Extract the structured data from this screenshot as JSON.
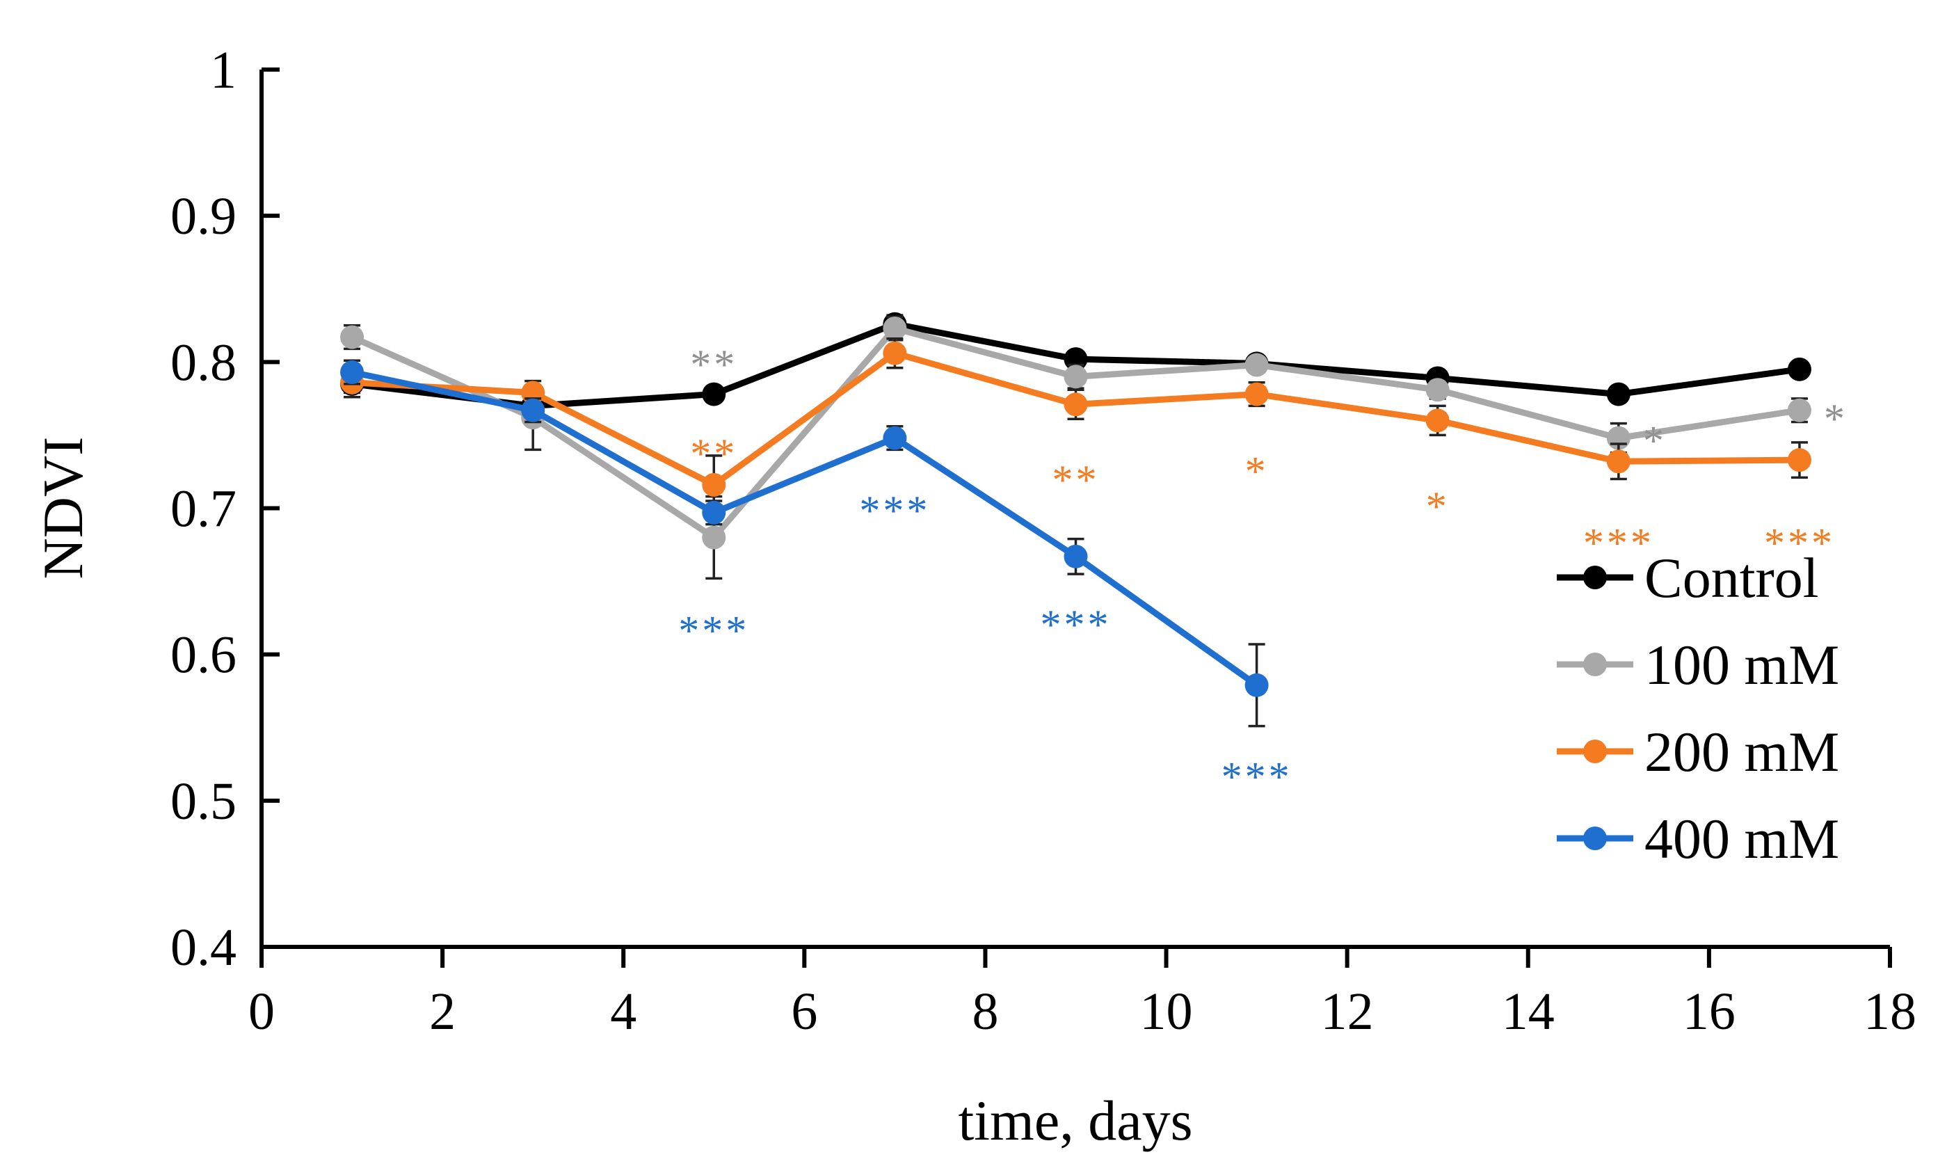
{
  "chart_data": {
    "type": "line",
    "title": "",
    "xlabel": "time, days",
    "ylabel": "NDVI",
    "xlim": [
      0,
      18
    ],
    "ylim": [
      0.4,
      1.0
    ],
    "xticks": [
      0,
      2,
      4,
      6,
      8,
      10,
      12,
      14,
      16,
      18
    ],
    "xtick_labels": [
      "0",
      "2",
      "4",
      "6",
      "8",
      "10",
      "12",
      "14",
      "16",
      "18"
    ],
    "yticks": [
      0.4,
      0.5,
      0.6,
      0.7,
      0.8,
      0.9,
      1.0
    ],
    "ytick_labels": [
      "0.4",
      "0.5",
      "0.6",
      "0.7",
      "0.8",
      "0.9",
      "1"
    ],
    "grid": false,
    "legend_position": "right",
    "series": [
      {
        "name": "Control",
        "color": "#000000",
        "x": [
          1,
          3,
          5,
          7,
          9,
          11,
          13,
          15,
          17
        ],
        "y": [
          0.785,
          0.77,
          0.778,
          0.826,
          0.802,
          0.799,
          0.789,
          0.778,
          0.795
        ],
        "err": [
          0.006,
          0.005,
          0.004,
          0.006,
          0.004,
          0.004,
          0.004,
          0.004,
          0.004
        ]
      },
      {
        "name": "100 mM",
        "color": "#a8a8a8",
        "x": [
          1,
          3,
          5,
          7,
          9,
          11,
          13,
          15,
          17
        ],
        "y": [
          0.817,
          0.762,
          0.68,
          0.823,
          0.79,
          0.798,
          0.781,
          0.748,
          0.767
        ],
        "err": [
          0.008,
          0.022,
          0.028,
          0.008,
          0.008,
          0.005,
          0.006,
          0.01,
          0.008
        ]
      },
      {
        "name": "200 mM",
        "color": "#f47b20",
        "x": [
          1,
          3,
          5,
          7,
          9,
          11,
          13,
          15,
          17
        ],
        "y": [
          0.786,
          0.779,
          0.716,
          0.806,
          0.771,
          0.778,
          0.76,
          0.732,
          0.733
        ],
        "err": [
          0.01,
          0.008,
          0.02,
          0.01,
          0.01,
          0.008,
          0.01,
          0.012,
          0.012
        ]
      },
      {
        "name": "400 mM",
        "color": "#1f6fd1",
        "x": [
          1,
          3,
          5,
          7,
          9,
          11
        ],
        "y": [
          0.793,
          0.767,
          0.697,
          0.748,
          0.667,
          0.579
        ],
        "err": [
          0.008,
          0.008,
          0.008,
          0.008,
          0.012,
          0.028
        ]
      }
    ],
    "annotations": [
      {
        "text": "**",
        "x": 5,
        "y": 0.803,
        "color": "#909090"
      },
      {
        "text": "**",
        "x": 5,
        "y": 0.742,
        "color": "#f47b20"
      },
      {
        "text": "***",
        "x": 5,
        "y": 0.621,
        "color": "#1f6fd1"
      },
      {
        "text": "***",
        "x": 7,
        "y": 0.703,
        "color": "#1f6fd1"
      },
      {
        "text": "**",
        "x": 9,
        "y": 0.724,
        "color": "#f47b20"
      },
      {
        "text": "***",
        "x": 9,
        "y": 0.625,
        "color": "#1f6fd1"
      },
      {
        "text": "*",
        "x": 11,
        "y": 0.73,
        "color": "#f47b20"
      },
      {
        "text": "***",
        "x": 11,
        "y": 0.521,
        "color": "#1f6fd1"
      },
      {
        "text": "*",
        "x": 13,
        "y": 0.706,
        "color": "#f47b20"
      },
      {
        "text": "*",
        "x": 15.4,
        "y": 0.751,
        "color": "#909090"
      },
      {
        "text": "***",
        "x": 15,
        "y": 0.681,
        "color": "#f47b20"
      },
      {
        "text": "*",
        "x": 17.4,
        "y": 0.766,
        "color": "#909090"
      },
      {
        "text": "***",
        "x": 17,
        "y": 0.681,
        "color": "#f47b20"
      }
    ]
  }
}
